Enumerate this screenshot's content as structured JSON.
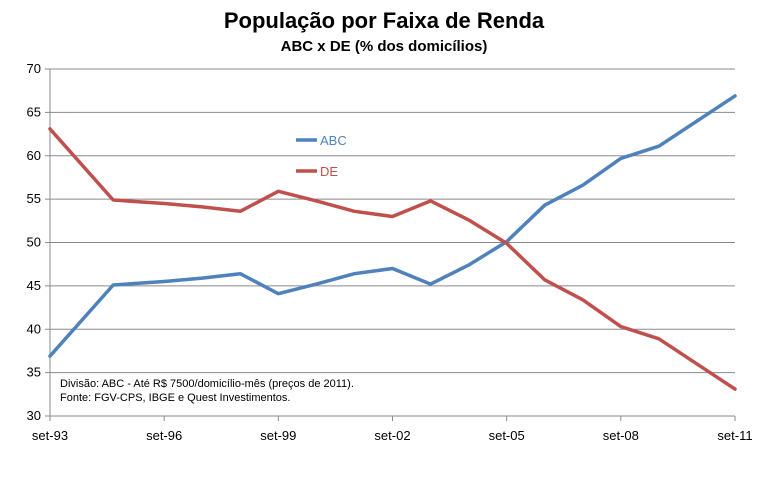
{
  "chart_data": {
    "type": "line",
    "title": "População por Faixa de Renda",
    "subtitle": "ABC x DE (% dos domicílios)",
    "xlabel": "",
    "ylabel": "",
    "x_ticks": [
      "set-93",
      "set-96",
      "set-99",
      "set-02",
      "set-05",
      "set-08",
      "set-11"
    ],
    "x_tick_values": [
      1993.67,
      1996.67,
      1999.67,
      2002.67,
      2005.67,
      2008.67,
      2011.67
    ],
    "xlim": [
      1993.67,
      2011.67
    ],
    "ylim": [
      30,
      70
    ],
    "y_ticks": [
      30,
      35,
      40,
      45,
      50,
      55,
      60,
      65,
      70
    ],
    "grid": "horizontal",
    "legend_position": "upper-center",
    "series": [
      {
        "name": "ABC",
        "color": "#4F81BD",
        "x": [
          1993.67,
          1995.33,
          1996.67,
          1997.67,
          1998.67,
          1999.67,
          2000.67,
          2001.67,
          2002.67,
          2003.67,
          2004.67,
          2005.67,
          2006.67,
          2007.67,
          2008.67,
          2009.67,
          2011.67
        ],
        "values": [
          36.9,
          45.1,
          45.5,
          45.9,
          46.4,
          44.1,
          45.2,
          46.4,
          47.0,
          45.2,
          47.4,
          50.1,
          54.3,
          56.6,
          59.7,
          61.1,
          66.9
        ]
      },
      {
        "name": "DE",
        "color": "#C0504D",
        "x": [
          1993.67,
          1995.33,
          1996.67,
          1997.67,
          1998.67,
          1999.67,
          2000.67,
          2001.67,
          2002.67,
          2003.67,
          2004.67,
          2005.67,
          2006.67,
          2007.67,
          2008.67,
          2009.67,
          2011.67
        ],
        "values": [
          63.1,
          54.9,
          54.5,
          54.1,
          53.6,
          55.9,
          54.8,
          53.6,
          53.0,
          54.8,
          52.6,
          49.9,
          45.7,
          43.4,
          40.3,
          38.9,
          33.1
        ]
      }
    ],
    "annotations": [
      "Divisão: ABC - Até R$ 7500/domicílio-mês (preços de 2011).",
      "Fonte: FGV-CPS, IBGE e Quest Investimentos."
    ]
  }
}
